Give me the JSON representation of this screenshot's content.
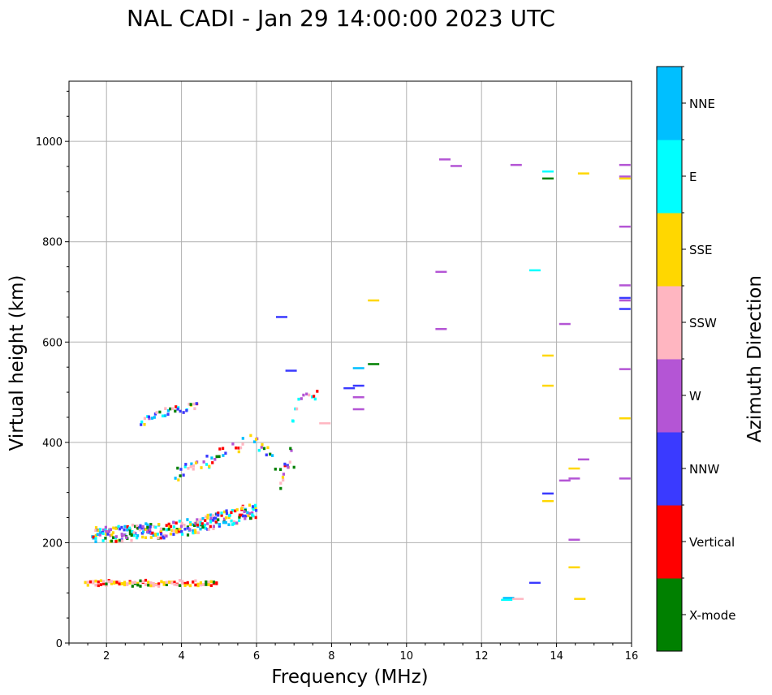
{
  "chart_data": {
    "type": "scatter",
    "title": "NAL CADI - Jan 29 14:00:00 2023 UTC",
    "xlabel": "Frequency (MHz)",
    "ylabel": "Virtual height (km)",
    "xlim": [
      1,
      16
    ],
    "ylim": [
      0,
      1120
    ],
    "xticks": [
      2,
      4,
      6,
      8,
      10,
      12,
      14,
      16
    ],
    "yticks": [
      0,
      200,
      400,
      600,
      800,
      1000
    ],
    "grid": true,
    "colorbar": {
      "label": "Azimuth Direction",
      "categories": [
        {
          "name": "X-mode",
          "color": "#008000"
        },
        {
          "name": "Vertical",
          "color": "#ff0000"
        },
        {
          "name": "NNW",
          "color": "#3a3aff"
        },
        {
          "name": "W",
          "color": "#b455d5"
        },
        {
          "name": "SSW",
          "color": "#ffb6c1"
        },
        {
          "name": "SSE",
          "color": "#ffd700"
        },
        {
          "name": "E",
          "color": "#00ffff"
        },
        {
          "name": "NNE",
          "color": "#00bfff"
        }
      ]
    },
    "traces": [
      {
        "name": "E-layer trace",
        "freq_start": 1.4,
        "freq_end": 4.9,
        "height": 122,
        "spread": 6
      },
      {
        "name": "F-layer main trace",
        "points": [
          [
            1.6,
            218
          ],
          [
            2.0,
            220
          ],
          [
            2.5,
            222
          ],
          [
            3.0,
            225
          ],
          [
            3.5,
            228
          ],
          [
            4.0,
            232
          ],
          [
            4.5,
            240
          ],
          [
            5.0,
            248
          ],
          [
            5.5,
            258
          ],
          [
            6.0,
            270
          ]
        ],
        "spread": 16
      },
      {
        "name": "F-layer second hop",
        "points": [
          [
            3.8,
            340
          ],
          [
            4.2,
            348
          ],
          [
            4.6,
            362
          ],
          [
            5.0,
            380
          ],
          [
            5.4,
            395
          ],
          [
            5.8,
            405
          ],
          [
            6.2,
            385
          ],
          [
            6.6,
            340
          ],
          [
            7.0,
            360
          ]
        ],
        "spread": 14
      },
      {
        "name": "F-layer third hop",
        "points": [
          [
            2.9,
            440
          ],
          [
            3.2,
            455
          ],
          [
            3.6,
            465
          ],
          [
            4.0,
            470
          ],
          [
            4.4,
            475
          ]
        ],
        "spread": 8
      },
      {
        "name": "high trace",
        "points": [
          [
            6.6,
            320
          ],
          [
            6.8,
            340
          ],
          [
            7.0,
            470
          ],
          [
            7.2,
            500
          ],
          [
            7.6,
            495
          ]
        ],
        "spread": 10
      }
    ],
    "isolated_echoes": [
      {
        "f": 6.65,
        "h": 652,
        "dir": "NNW"
      },
      {
        "f": 6.9,
        "h": 545,
        "dir": "NNW"
      },
      {
        "f": 7.8,
        "h": 440,
        "dir": "SSW"
      },
      {
        "f": 8.45,
        "h": 510,
        "dir": "NNW"
      },
      {
        "f": 8.7,
        "h": 550,
        "dir": "NNE"
      },
      {
        "f": 8.7,
        "h": 515,
        "dir": "NNW"
      },
      {
        "f": 8.7,
        "h": 492,
        "dir": "W"
      },
      {
        "f": 8.7,
        "h": 468,
        "dir": "W"
      },
      {
        "f": 9.1,
        "h": 685,
        "dir": "SSE"
      },
      {
        "f": 9.1,
        "h": 558,
        "dir": "X-mode"
      },
      {
        "f": 10.9,
        "h": 742,
        "dir": "W"
      },
      {
        "f": 10.9,
        "h": 628,
        "dir": "W"
      },
      {
        "f": 11.0,
        "h": 966,
        "dir": "W"
      },
      {
        "f": 11.3,
        "h": 953,
        "dir": "W"
      },
      {
        "f": 12.9,
        "h": 955,
        "dir": "W"
      },
      {
        "f": 12.7,
        "h": 92,
        "dir": "NNE"
      },
      {
        "f": 12.65,
        "h": 88,
        "dir": "E"
      },
      {
        "f": 12.95,
        "h": 90,
        "dir": "SSW"
      },
      {
        "f": 13.4,
        "h": 745,
        "dir": "E"
      },
      {
        "f": 13.4,
        "h": 122,
        "dir": "NNW"
      },
      {
        "f": 13.75,
        "h": 942,
        "dir": "E"
      },
      {
        "f": 13.75,
        "h": 928,
        "dir": "X-mode"
      },
      {
        "f": 13.75,
        "h": 575,
        "dir": "SSE"
      },
      {
        "f": 13.75,
        "h": 515,
        "dir": "SSE"
      },
      {
        "f": 13.75,
        "h": 300,
        "dir": "NNW"
      },
      {
        "f": 13.75,
        "h": 285,
        "dir": "SSE"
      },
      {
        "f": 14.2,
        "h": 638,
        "dir": "W"
      },
      {
        "f": 14.2,
        "h": 326,
        "dir": "W"
      },
      {
        "f": 14.45,
        "h": 350,
        "dir": "SSE"
      },
      {
        "f": 14.45,
        "h": 330,
        "dir": "W"
      },
      {
        "f": 14.45,
        "h": 208,
        "dir": "W"
      },
      {
        "f": 14.45,
        "h": 153,
        "dir": "SSE"
      },
      {
        "f": 14.7,
        "h": 938,
        "dir": "SSE"
      },
      {
        "f": 14.7,
        "h": 368,
        "dir": "W"
      },
      {
        "f": 14.6,
        "h": 90,
        "dir": "SSE"
      },
      {
        "f": 15.8,
        "h": 955,
        "dir": "W"
      },
      {
        "f": 15.8,
        "h": 932,
        "dir": "W"
      },
      {
        "f": 15.8,
        "h": 928,
        "dir": "SSE"
      },
      {
        "f": 15.8,
        "h": 832,
        "dir": "W"
      },
      {
        "f": 15.8,
        "h": 715,
        "dir": "W"
      },
      {
        "f": 15.8,
        "h": 690,
        "dir": "NNW"
      },
      {
        "f": 15.8,
        "h": 685,
        "dir": "W"
      },
      {
        "f": 15.8,
        "h": 668,
        "dir": "NNW"
      },
      {
        "f": 15.8,
        "h": 548,
        "dir": "W"
      },
      {
        "f": 15.8,
        "h": 450,
        "dir": "SSE"
      },
      {
        "f": 15.8,
        "h": 330,
        "dir": "W"
      }
    ]
  }
}
